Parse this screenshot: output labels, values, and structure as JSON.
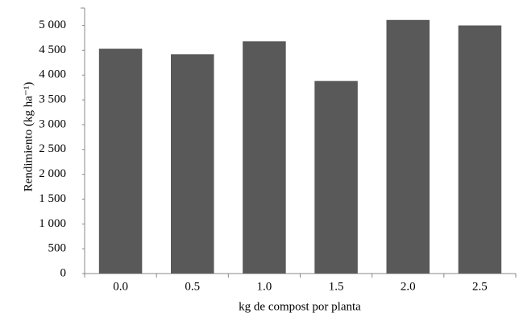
{
  "chart_data": {
    "type": "bar",
    "x_label": "kg de compost por planta",
    "y_label": "Rendimiento (kg  ha⁻¹)",
    "categories": [
      "0.0",
      "0.5",
      "1.0",
      "1.5",
      "2.0",
      "2.5"
    ],
    "values": [
      4530,
      4420,
      4680,
      3880,
      5110,
      5000
    ],
    "color": "#595959",
    "ylim": [
      0,
      5350
    ],
    "yticks": [
      {
        "value": 0,
        "label": "0"
      },
      {
        "value": 500,
        "label": "500"
      },
      {
        "value": 1000,
        "label": "1 000"
      },
      {
        "value": 1500,
        "label": "1 500"
      },
      {
        "value": 2000,
        "label": "2 000"
      },
      {
        "value": 2500,
        "label": "2 500"
      },
      {
        "value": 3000,
        "label": "3 000"
      },
      {
        "value": 3500,
        "label": "3 500"
      },
      {
        "value": 4000,
        "label": "4 000"
      },
      {
        "value": 4500,
        "label": "4 500"
      },
      {
        "value": 5000,
        "label": "5 000"
      }
    ],
    "grid": false
  }
}
